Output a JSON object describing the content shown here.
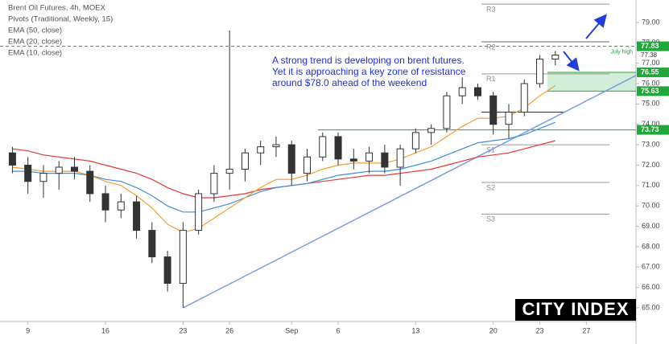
{
  "chart_data": {
    "type": "candlestick",
    "title": "Brent Oil Futures, 4h, MOEX",
    "pivot_legend": "Pivots (Traditional, Weekly, 15)",
    "x": [
      1,
      2,
      3,
      4,
      5,
      6,
      7,
      8,
      9,
      10,
      11,
      12,
      13,
      14,
      15,
      16,
      17,
      18,
      19,
      20,
      21,
      22,
      23,
      24,
      25,
      26,
      27,
      28,
      29,
      30,
      31,
      32,
      33,
      34,
      35,
      36
    ],
    "open": [
      72.6,
      72.0,
      71.2,
      71.6,
      71.9,
      71.7,
      70.6,
      69.8,
      70.2,
      68.8,
      67.5,
      66.2,
      68.8,
      70.6,
      71.6,
      71.8,
      72.6,
      72.9,
      73.0,
      71.6,
      72.4,
      73.4,
      72.3,
      72.2,
      72.6,
      71.9,
      72.8,
      73.6,
      73.8,
      75.4,
      75.8,
      75.4,
      74.0,
      74.6,
      76.0,
      77.2
    ],
    "high": [
      72.9,
      72.4,
      72.0,
      72.2,
      72.4,
      72.0,
      71.0,
      70.6,
      70.5,
      69.2,
      67.8,
      69.2,
      70.8,
      72.0,
      78.6,
      72.8,
      73.2,
      73.4,
      73.2,
      72.8,
      73.6,
      73.6,
      72.8,
      72.9,
      73.0,
      73.0,
      73.8,
      74.0,
      75.6,
      76.3,
      76.0,
      75.6,
      75.0,
      76.2,
      77.4,
      77.6
    ],
    "low": [
      71.6,
      70.6,
      70.4,
      70.8,
      71.3,
      70.2,
      69.2,
      69.4,
      68.4,
      67.2,
      65.8,
      65.0,
      68.6,
      70.2,
      70.8,
      71.2,
      72.0,
      72.4,
      71.0,
      71.2,
      72.2,
      72.0,
      71.8,
      71.6,
      71.6,
      71.0,
      72.6,
      73.0,
      73.6,
      75.0,
      75.2,
      73.5,
      73.3,
      74.4,
      75.8,
      76.9
    ],
    "close": [
      72.0,
      71.2,
      71.6,
      71.9,
      71.7,
      70.6,
      69.8,
      70.2,
      68.8,
      67.5,
      66.2,
      68.8,
      70.6,
      71.6,
      71.8,
      72.6,
      72.9,
      73.0,
      71.6,
      72.4,
      73.4,
      72.3,
      72.2,
      72.6,
      71.9,
      72.8,
      73.6,
      73.8,
      75.4,
      75.8,
      75.4,
      74.0,
      74.6,
      76.0,
      77.2,
      77.4
    ],
    "series": [
      {
        "name": "EMA (50, close)",
        "color": "#e53935",
        "values": [
          72.8,
          72.7,
          72.5,
          72.4,
          72.3,
          72.2,
          72.0,
          71.8,
          71.6,
          71.3,
          70.9,
          70.6,
          70.4,
          70.4,
          70.5,
          70.6,
          70.8,
          70.9,
          71.0,
          71.1,
          71.2,
          71.3,
          71.4,
          71.5,
          71.5,
          71.6,
          71.7,
          71.8,
          72.0,
          72.2,
          72.4,
          72.5,
          72.6,
          72.8,
          73.0,
          73.2
        ]
      },
      {
        "name": "EMA (20, close)",
        "color": "#3d8fd6",
        "values": [
          71.7,
          71.7,
          71.6,
          71.6,
          71.6,
          71.5,
          71.3,
          71.2,
          70.9,
          70.5,
          70.0,
          69.7,
          69.7,
          69.9,
          70.1,
          70.4,
          70.7,
          70.9,
          71.0,
          71.1,
          71.3,
          71.5,
          71.6,
          71.7,
          71.7,
          71.8,
          72.0,
          72.2,
          72.5,
          72.8,
          73.1,
          73.2,
          73.3,
          73.5,
          73.8,
          74.1
        ]
      },
      {
        "name": "EMA (10, close)",
        "color": "#f59c34",
        "values": [
          71.9,
          71.8,
          71.7,
          71.7,
          71.7,
          71.5,
          71.2,
          71.0,
          70.5,
          69.9,
          69.1,
          68.7,
          68.9,
          69.4,
          69.9,
          70.4,
          70.9,
          71.3,
          71.3,
          71.5,
          71.8,
          72.0,
          72.1,
          72.1,
          72.1,
          72.3,
          72.6,
          72.9,
          73.4,
          73.9,
          74.3,
          74.3,
          74.4,
          74.8,
          75.4,
          75.9
        ]
      }
    ],
    "pivots": {
      "labels": [
        "R3",
        "R2",
        "R1",
        null,
        "S1",
        "S2",
        "S3"
      ],
      "values": [
        79.9,
        78.05,
        76.48,
        74.6,
        73.0,
        71.15,
        69.6
      ]
    },
    "price_levels": [
      77.83,
      76.55,
      75.63,
      73.73
    ],
    "level_color": "#22a83a",
    "last_price": 77.38,
    "level_note": "July high",
    "trendline": {
      "x": [
        12,
        41.2
      ],
      "y": [
        65.0,
        76.4
      ],
      "color": "#7b9de6"
    },
    "annotation": [
      "A strong trend is developing on brent futures.",
      "Yet it is approaching a key zone of resistance",
      "around $78.0 ahead of the weekend"
    ],
    "logo": "CITY INDEX",
    "xlim": [
      0.2,
      41.2
    ],
    "ylim": [
      64.33,
      80.1
    ],
    "xticks": [
      {
        "value": 2,
        "label": "9"
      },
      {
        "value": 7,
        "label": "16"
      },
      {
        "value": 12,
        "label": "23"
      },
      {
        "value": 15,
        "label": "26"
      },
      {
        "value": 19,
        "label": "Sep"
      },
      {
        "value": 22,
        "label": "6"
      },
      {
        "value": 27,
        "label": "13"
      },
      {
        "value": 32,
        "label": "20"
      },
      {
        "value": 35,
        "label": "23"
      },
      {
        "value": 38,
        "label": "27"
      }
    ],
    "yticks": [
      {
        "value": 65,
        "label": "65.00"
      },
      {
        "value": 66,
        "label": "66.00"
      },
      {
        "value": 67,
        "label": "67.00"
      },
      {
        "value": 68,
        "label": "68.00"
      },
      {
        "value": 69,
        "label": "69.00"
      },
      {
        "value": 70,
        "label": "70.00"
      },
      {
        "value": 71,
        "label": "71.00"
      },
      {
        "value": 72,
        "label": "72.00"
      },
      {
        "value": 73,
        "label": "73.00"
      },
      {
        "value": 74,
        "label": "74.00"
      },
      {
        "value": 75,
        "label": "75.00"
      },
      {
        "value": 76,
        "label": "76.00"
      },
      {
        "value": 77,
        "label": "77.00"
      },
      {
        "value": 78,
        "label": "78.00"
      },
      {
        "value": 79,
        "label": "79.00"
      }
    ]
  }
}
